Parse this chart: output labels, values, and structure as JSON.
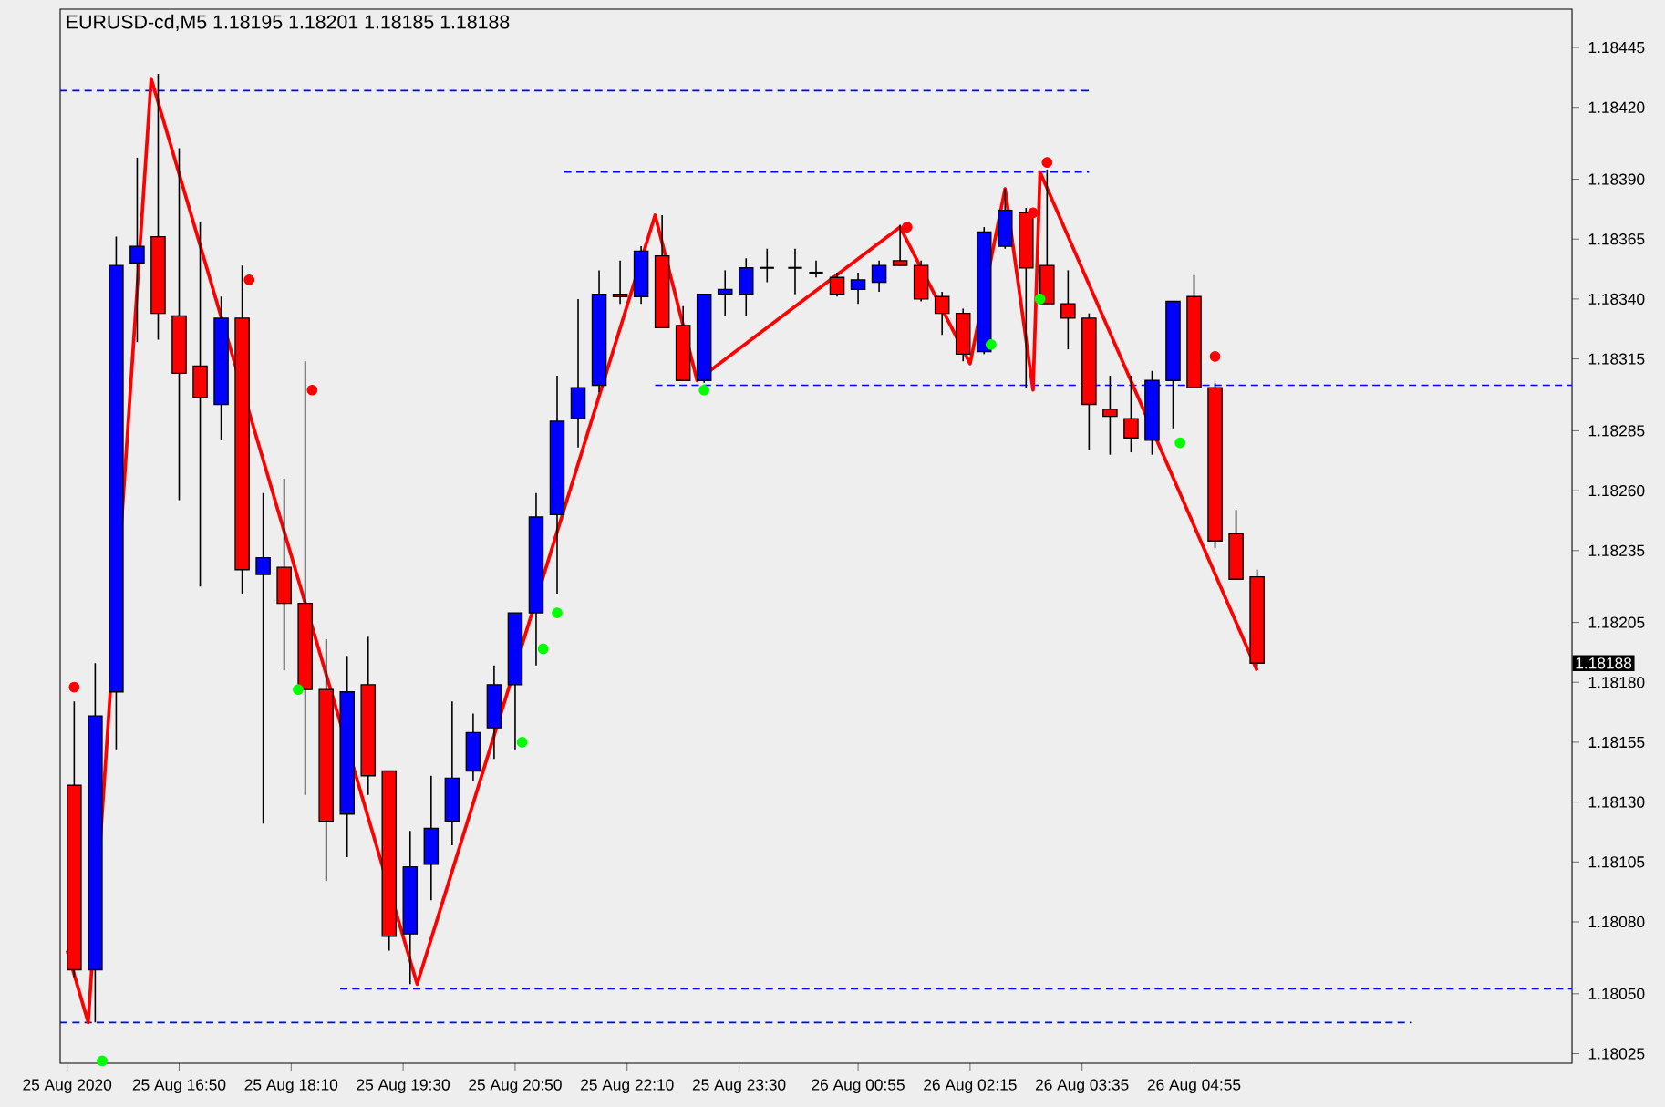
{
  "chart_data": {
    "type": "candlestick",
    "title": "EURUSD-cd,M5  1.18195 1.18201 1.18185 1.18188",
    "x": [
      "2020-08-25T15:35",
      "2020-08-25T15:50",
      "2020-08-25T16:05",
      "2020-08-25T16:20",
      "2020-08-25T16:35",
      "2020-08-25T16:50",
      "2020-08-25T17:05",
      "2020-08-25T17:20",
      "2020-08-25T17:35",
      "2020-08-25T17:50",
      "2020-08-25T18:05",
      "2020-08-25T18:20",
      "2020-08-25T18:35",
      "2020-08-25T18:50",
      "2020-08-25T19:05",
      "2020-08-25T19:20",
      "2020-08-25T19:35",
      "2020-08-25T19:50",
      "2020-08-25T20:05",
      "2020-08-25T20:20",
      "2020-08-25T20:35",
      "2020-08-25T20:50",
      "2020-08-25T21:05",
      "2020-08-25T21:20",
      "2020-08-25T21:35",
      "2020-08-25T21:50",
      "2020-08-25T22:05",
      "2020-08-25T22:20",
      "2020-08-25T22:35",
      "2020-08-25T22:50",
      "2020-08-25T23:05",
      "2020-08-25T23:20",
      "2020-08-25T23:35",
      "2020-08-25T23:50",
      "2020-08-26T00:10",
      "2020-08-26T00:25",
      "2020-08-26T00:40",
      "2020-08-26T00:55",
      "2020-08-26T01:10",
      "2020-08-26T01:25",
      "2020-08-26T01:40",
      "2020-08-26T01:55",
      "2020-08-26T02:10",
      "2020-08-26T02:25",
      "2020-08-26T02:40",
      "2020-08-26T02:55",
      "2020-08-26T03:10",
      "2020-08-26T03:25",
      "2020-08-26T03:40",
      "2020-08-26T03:55",
      "2020-08-26T04:10",
      "2020-08-26T04:25",
      "2020-08-26T04:40",
      "2020-08-26T04:55",
      "2020-08-26T05:10",
      "2020-08-26T05:25",
      "2020-08-26T05:40"
    ],
    "ohlc": [
      [
        1.18137,
        1.18172,
        1.18057,
        1.1806
      ],
      [
        1.1806,
        1.18188,
        1.18038,
        1.18166
      ],
      [
        1.18176,
        1.18366,
        1.18152,
        1.18354
      ],
      [
        1.18355,
        1.18399,
        1.18322,
        1.18362
      ],
      [
        1.18366,
        1.18434,
        1.18323,
        1.18334
      ],
      [
        1.18333,
        1.18403,
        1.18256,
        1.18309
      ],
      [
        1.18312,
        1.18372,
        1.1822,
        1.18299
      ],
      [
        1.18296,
        1.18341,
        1.18281,
        1.18332
      ],
      [
        1.18332,
        1.18354,
        1.18217,
        1.18227
      ],
      [
        1.18225,
        1.18259,
        1.18121,
        1.18232
      ],
      [
        1.18228,
        1.18265,
        1.18185,
        1.18213
      ],
      [
        1.18213,
        1.18314,
        1.18133,
        1.18177
      ],
      [
        1.18177,
        1.18198,
        1.18097,
        1.18122
      ],
      [
        1.18125,
        1.18191,
        1.18107,
        1.18176
      ],
      [
        1.18179,
        1.18199,
        1.18133,
        1.18141
      ],
      [
        1.18143,
        1.18143,
        1.18068,
        1.18074
      ],
      [
        1.18075,
        1.18118,
        1.18054,
        1.18103
      ],
      [
        1.18104,
        1.18141,
        1.18089,
        1.18119
      ],
      [
        1.18122,
        1.18172,
        1.18112,
        1.1814
      ],
      [
        1.18143,
        1.18167,
        1.18139,
        1.18159
      ],
      [
        1.18161,
        1.18187,
        1.18148,
        1.18179
      ],
      [
        1.18179,
        1.18209,
        1.18152,
        1.18209
      ],
      [
        1.18209,
        1.18259,
        1.18187,
        1.18249
      ],
      [
        1.1825,
        1.18308,
        1.18217,
        1.18289
      ],
      [
        1.1829,
        1.1834,
        1.18278,
        1.18303
      ],
      [
        1.18304,
        1.18352,
        1.18301,
        1.18342
      ],
      [
        1.18342,
        1.18356,
        1.18338,
        1.18341
      ],
      [
        1.18341,
        1.18362,
        1.18338,
        1.1836
      ],
      [
        1.18358,
        1.18375,
        1.18328,
        1.18328
      ],
      [
        1.18329,
        1.18337,
        1.18306,
        1.18306
      ],
      [
        1.18306,
        1.18342,
        1.18305,
        1.18342
      ],
      [
        1.18342,
        1.18352,
        1.18333,
        1.18344
      ],
      [
        1.18342,
        1.18357,
        1.18333,
        1.18353
      ],
      [
        1.18353,
        1.18361,
        1.18347,
        1.18353
      ],
      [
        1.18353,
        1.18361,
        1.18342,
        1.18353
      ],
      [
        1.18351,
        1.18356,
        1.18349,
        1.18351
      ],
      [
        1.18349,
        1.18351,
        1.18341,
        1.18342
      ],
      [
        1.18344,
        1.18351,
        1.18338,
        1.18348
      ],
      [
        1.18347,
        1.18356,
        1.18343,
        1.18354
      ],
      [
        1.18356,
        1.18371,
        1.18354,
        1.18354
      ],
      [
        1.18354,
        1.18356,
        1.18339,
        1.1834
      ],
      [
        1.18341,
        1.18343,
        1.18325,
        1.18334
      ],
      [
        1.18334,
        1.18336,
        1.18314,
        1.18317
      ],
      [
        1.18318,
        1.1837,
        1.18317,
        1.18368
      ],
      [
        1.18362,
        1.18386,
        1.18361,
        1.18377
      ],
      [
        1.18376,
        1.18378,
        1.18303,
        1.18353
      ],
      [
        1.18354,
        1.18394,
        1.18338,
        1.18338
      ],
      [
        1.18338,
        1.18352,
        1.18319,
        1.18332
      ],
      [
        1.18332,
        1.18334,
        1.18277,
        1.18296
      ],
      [
        1.18294,
        1.18308,
        1.18275,
        1.18291
      ],
      [
        1.1829,
        1.18308,
        1.18276,
        1.18282
      ],
      [
        1.18281,
        1.1831,
        1.18275,
        1.18306
      ],
      [
        1.18306,
        1.18339,
        1.18286,
        1.18339
      ],
      [
        1.18341,
        1.1835,
        1.18303,
        1.18303
      ],
      [
        1.18303,
        1.18305,
        1.18236,
        1.18239
      ],
      [
        1.18242,
        1.18252,
        1.18223,
        1.18223
      ],
      [
        1.18224,
        1.18227,
        1.18186,
        1.18188
      ]
    ],
    "colors": [
      "#ff0000",
      "#0000ff",
      "#0000ff",
      "#0000ff",
      "#ff0000",
      "#ff0000",
      "#ff0000",
      "#0000ff",
      "#ff0000",
      "#0000ff",
      "#ff0000",
      "#ff0000",
      "#ff0000",
      "#0000ff",
      "#ff0000",
      "#ff0000",
      "#0000ff",
      "#0000ff",
      "#0000ff",
      "#0000ff",
      "#0000ff",
      "#0000ff",
      "#0000ff",
      "#0000ff",
      "#0000ff",
      "#0000ff",
      "#ff0000",
      "#0000ff",
      "#ff0000",
      "#ff0000",
      "#0000ff",
      "#0000ff",
      "#0000ff",
      "#000000",
      "#000000",
      "#000000",
      "#ff0000",
      "#0000ff",
      "#0000ff",
      "#ff0000",
      "#ff0000",
      "#ff0000",
      "#ff0000",
      "#0000ff",
      "#0000ff",
      "#ff0000",
      "#ff0000",
      "#ff0000",
      "#ff0000",
      "#ff0000",
      "#ff0000",
      "#0000ff",
      "#0000ff",
      "#ff0000",
      "#ff0000",
      "#ff0000",
      "#ff0000"
    ],
    "xlim": [
      "2020-08-25T15:25",
      "2020-08-26T09:25"
    ],
    "ylim": [
      1.18021,
      1.18461
    ],
    "xticks": [
      {
        "value": "2020-08-25T15:30",
        "label": "25 Aug 2020"
      },
      {
        "value": "2020-08-25T16:50",
        "label": "25 Aug 16:50"
      },
      {
        "value": "2020-08-25T18:10",
        "label": "25 Aug 18:10"
      },
      {
        "value": "2020-08-25T19:30",
        "label": "25 Aug 19:30"
      },
      {
        "value": "2020-08-25T20:50",
        "label": "25 Aug 20:50"
      },
      {
        "value": "2020-08-25T22:10",
        "label": "25 Aug 22:10"
      },
      {
        "value": "2020-08-25T23:30",
        "label": "25 Aug 23:30"
      },
      {
        "value": "2020-08-26T00:55",
        "label": "26 Aug 00:55"
      },
      {
        "value": "2020-08-26T02:15",
        "label": "26 Aug 02:15"
      },
      {
        "value": "2020-08-26T03:35",
        "label": "26 Aug 03:35"
      },
      {
        "value": "2020-08-26T04:55",
        "label": "26 Aug 04:55"
      }
    ],
    "yticks": [
      {
        "value": 1.18025,
        "label": "1.18025"
      },
      {
        "value": 1.1805,
        "label": "1.18050"
      },
      {
        "value": 1.1808,
        "label": "1.18080"
      },
      {
        "value": 1.18105,
        "label": "1.18105"
      },
      {
        "value": 1.1813,
        "label": "1.18130"
      },
      {
        "value": 1.18155,
        "label": "1.18155"
      },
      {
        "value": 1.1818,
        "label": "1.18180"
      },
      {
        "value": 1.18205,
        "label": "1.18205"
      },
      {
        "value": 1.18235,
        "label": "1.18235"
      },
      {
        "value": 1.1826,
        "label": "1.18260"
      },
      {
        "value": 1.18285,
        "label": "1.18285"
      },
      {
        "value": 1.18315,
        "label": "1.18315"
      },
      {
        "value": 1.1834,
        "label": "1.18340"
      },
      {
        "value": 1.18365,
        "label": "1.18365"
      },
      {
        "value": 1.1839,
        "label": "1.18390"
      },
      {
        "value": 1.1842,
        "label": "1.18420"
      },
      {
        "value": 1.18445,
        "label": "1.18445"
      }
    ],
    "series": [
      {
        "type": "line",
        "color": "#0000ff",
        "line_style": "dashed",
        "x": [
          "2020-08-25T15:25",
          "2020-08-26T03:40"
        ],
        "values": [
          1.18427,
          1.18427
        ]
      },
      {
        "type": "line",
        "color": "#0000ff",
        "line_style": "dashed",
        "x": [
          "2020-08-25T21:25",
          "2020-08-26T03:40"
        ],
        "values": [
          1.18393,
          1.18393
        ]
      },
      {
        "type": "line",
        "color": "#0000ff",
        "line_style": "dashed",
        "x": [
          "2020-08-25T22:30",
          "2020-08-26T09:25"
        ],
        "values": [
          1.18304,
          1.18304
        ]
      },
      {
        "type": "line",
        "color": "#0000ff",
        "line_style": "dashed",
        "x": [
          "2020-08-25T18:45",
          "2020-08-26T09:25"
        ],
        "values": [
          1.18052,
          1.18052
        ]
      },
      {
        "type": "line",
        "color": "#0000ff",
        "line_style": "dashed",
        "x": [
          "2020-08-25T15:25",
          "2020-08-26T07:30"
        ],
        "values": [
          1.18038,
          1.18038
        ]
      },
      {
        "type": "line",
        "color": "#ff0000",
        "line_style": "solid",
        "x": [
          "2020-08-25T15:30",
          "2020-08-25T15:45",
          "2020-08-25T16:30",
          "2020-08-25T19:40",
          "2020-08-25T22:30",
          "2020-08-25T23:00",
          "2020-08-26T01:25",
          "2020-08-26T02:15",
          "2020-08-26T02:40",
          "2020-08-26T03:00",
          "2020-08-26T03:05",
          "2020-08-26T05:40"
        ],
        "values": [
          1.18068,
          1.18038,
          1.18432,
          1.18054,
          1.18375,
          1.18306,
          1.1837,
          1.18313,
          1.18386,
          1.18302,
          1.18393,
          1.18185
        ]
      },
      {
        "type": "scatter",
        "color": "#ff0000",
        "marker": "circle",
        "x": [
          "2020-08-25T15:35",
          "2020-08-25T17:40",
          "2020-08-25T18:25",
          "2020-08-26T01:30",
          "2020-08-26T03:00",
          "2020-08-26T03:10",
          "2020-08-26T05:10"
        ],
        "values": [
          1.18178,
          1.18348,
          1.18302,
          1.1837,
          1.18376,
          1.18397,
          1.18316
        ]
      },
      {
        "type": "scatter",
        "color": "#00ff00",
        "marker": "circle",
        "x": [
          "2020-08-25T15:55",
          "2020-08-25T18:15",
          "2020-08-25T20:55",
          "2020-08-25T21:10",
          "2020-08-25T21:20",
          "2020-08-25T23:05",
          "2020-08-26T02:30",
          "2020-08-26T03:05",
          "2020-08-26T04:45"
        ],
        "values": [
          1.18022,
          1.18177,
          1.18155,
          1.18194,
          1.18209,
          1.18302,
          1.18321,
          1.1834,
          1.1828
        ]
      }
    ],
    "annotations": [
      "1.18188"
    ]
  }
}
